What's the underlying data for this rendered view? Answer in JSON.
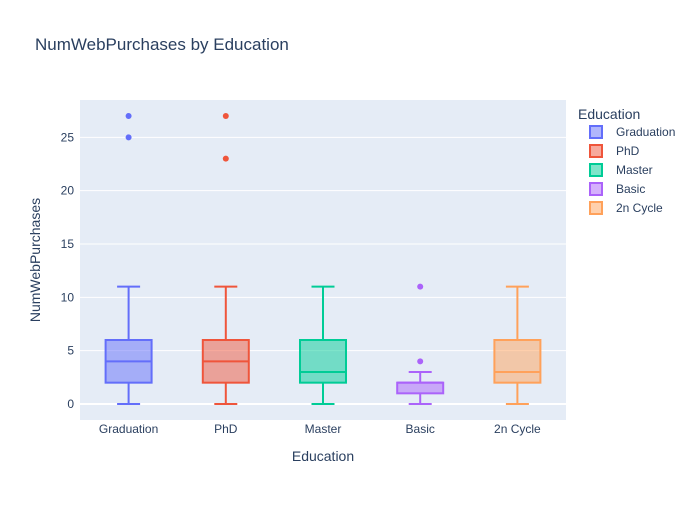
{
  "chart_data": {
    "type": "box",
    "title": "NumWebPurchases by Education",
    "xlabel": "Education",
    "ylabel": "NumWebPurchases",
    "ylim": [
      -1.5,
      28.5
    ],
    "yticks": [
      0,
      5,
      10,
      15,
      20,
      25
    ],
    "grid": true,
    "legend_title": "Education",
    "legend_position": "right",
    "categories": [
      "Graduation",
      "PhD",
      "Master",
      "Basic",
      "2n Cycle"
    ],
    "series": [
      {
        "name": "Graduation",
        "color": "#636efa",
        "fill": "rgba(99,110,250,0.5)",
        "min": 0,
        "q1": 2,
        "median": 4,
        "q3": 6,
        "max": 11,
        "outliers": [
          25,
          27
        ]
      },
      {
        "name": "PhD",
        "color": "#ef553b",
        "fill": "rgba(239,85,59,0.5)",
        "min": 0,
        "q1": 2,
        "median": 4,
        "q3": 6,
        "max": 11,
        "outliers": [
          23,
          27
        ]
      },
      {
        "name": "Master",
        "color": "#00cc96",
        "fill": "rgba(0,204,150,0.5)",
        "min": 0,
        "q1": 2,
        "median": 3,
        "q3": 6,
        "max": 11,
        "outliers": []
      },
      {
        "name": "Basic",
        "color": "#ab63fa",
        "fill": "rgba(171,99,250,0.5)",
        "min": 0,
        "q1": 1,
        "median": 2,
        "q3": 2,
        "max": 3,
        "outliers": [
          4,
          11
        ]
      },
      {
        "name": "2n Cycle",
        "color": "#ffa15a",
        "fill": "rgba(255,161,90,0.5)",
        "min": 0,
        "q1": 2,
        "median": 3,
        "q3": 6,
        "max": 11,
        "outliers": []
      }
    ],
    "colors": {
      "plot_bg": "#e5ecf6",
      "grid": "#ffffff",
      "text": "#2a3f5f"
    }
  }
}
